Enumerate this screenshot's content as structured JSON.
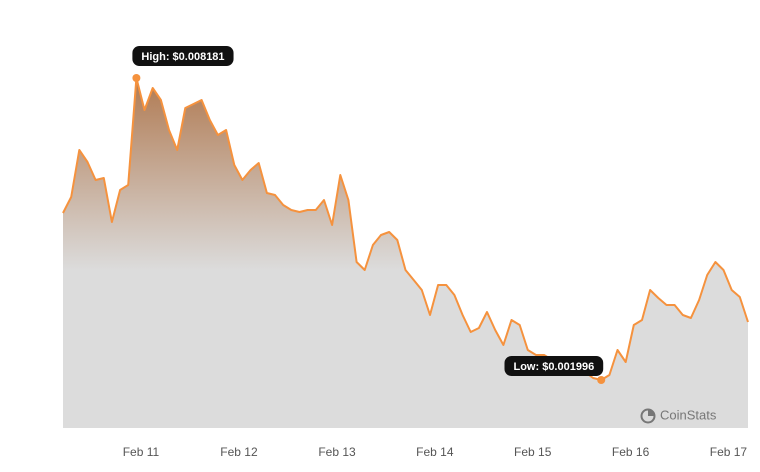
{
  "chart_data": {
    "type": "area",
    "series": [
      {
        "name": "Price",
        "color": "#f5923e",
        "values": [
          0.005416,
          0.005744,
          0.006706,
          0.006461,
          0.006092,
          0.006133,
          0.005232,
          0.005887,
          0.00599,
          0.008181,
          0.007526,
          0.007976,
          0.00773,
          0.007116,
          0.006706,
          0.007567,
          0.007649,
          0.00773,
          0.007321,
          0.007014,
          0.007116,
          0.006399,
          0.006092,
          0.006297,
          0.00644,
          0.005826,
          0.005785,
          0.00558,
          0.005478,
          0.005437,
          0.005478,
          0.005478,
          0.005682,
          0.00517,
          0.006194,
          0.005682,
          0.004413,
          0.004249,
          0.004761,
          0.004966,
          0.005027,
          0.004863,
          0.004249,
          0.004044,
          0.003839,
          0.003327,
          0.003942,
          0.003942,
          0.003737,
          0.003327,
          0.002979,
          0.003061,
          0.003389,
          0.00302,
          0.002713,
          0.003225,
          0.003122,
          0.00261,
          0.002508,
          0.002508,
          0.002406,
          0.002201,
          0.002201,
          0.00216,
          0.00216,
          0.002037,
          0.001996,
          0.002098,
          0.00261,
          0.002365,
          0.003122,
          0.003225,
          0.003839,
          0.003675,
          0.003532,
          0.003532,
          0.003327,
          0.003266,
          0.003634,
          0.004146,
          0.004413,
          0.004249,
          0.003839,
          0.003696,
          0.003184
        ]
      }
    ],
    "xlim": [
      0,
      84
    ],
    "xticks": [
      {
        "value": 9.56,
        "label": "Feb 11"
      },
      {
        "value": 21.58,
        "label": "Feb 12"
      },
      {
        "value": 33.6,
        "label": "Feb 13"
      },
      {
        "value": 45.6,
        "label": "Feb 14"
      },
      {
        "value": 57.6,
        "label": "Feb 15"
      },
      {
        "value": 69.6,
        "label": "Feb 16"
      },
      {
        "value": 81.6,
        "label": "Feb 17"
      }
    ],
    "ylim": [
      0.001013,
      0.009369
    ],
    "annotations": {
      "high": "High: $0.008181",
      "low": "Low: $0.001996"
    },
    "watermark": "CoinStats"
  }
}
